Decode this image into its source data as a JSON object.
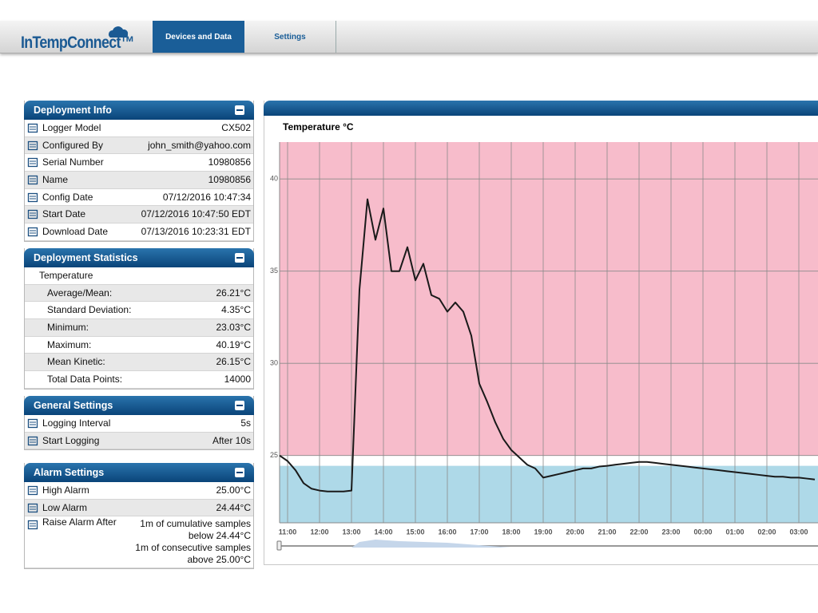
{
  "header": {
    "logo": "InTempConnect™",
    "tabs": [
      "Devices and Data",
      "Settings"
    ]
  },
  "deployment_info": {
    "title": "Deployment Info",
    "rows": [
      {
        "label": "Logger Model",
        "value": "CX502"
      },
      {
        "label": "Configured By",
        "value": "john_smith@yahoo.com"
      },
      {
        "label": "Serial Number",
        "value": "10980856"
      },
      {
        "label": "Name",
        "value": "10980856"
      },
      {
        "label": "Config Date",
        "value": "07/12/2016 10:47:34"
      },
      {
        "label": "Start Date",
        "value": "07/12/2016 10:47:50 EDT"
      },
      {
        "label": "Download Date",
        "value": "07/13/2016 10:23:31 EDT"
      }
    ]
  },
  "deployment_statistics": {
    "title": "Deployment Statistics",
    "group": "Temperature",
    "rows": [
      {
        "label": "Average/Mean:",
        "value": "26.21°C"
      },
      {
        "label": "Standard Deviation:",
        "value": "4.35°C"
      },
      {
        "label": "Minimum:",
        "value": "23.03°C"
      },
      {
        "label": "Maximum:",
        "value": "40.19°C"
      },
      {
        "label": "Mean Kinetic:",
        "value": "26.15°C"
      },
      {
        "label": "Total Data Points:",
        "value": "14000"
      }
    ]
  },
  "general_settings": {
    "title": "General Settings",
    "rows": [
      {
        "label": "Logging Interval",
        "value": "5s"
      },
      {
        "label": "Start Logging",
        "value": "After 10s"
      }
    ]
  },
  "alarm_settings": {
    "title": "Alarm Settings",
    "rows": [
      {
        "label": "High Alarm",
        "value": "25.00°C"
      },
      {
        "label": "Low Alarm",
        "value": "24.44°C"
      },
      {
        "label": "Raise Alarm After",
        "lines": [
          "1m of cumulative samples",
          "below 24.44°C",
          "1m of consecutive samples",
          "above 25.00°C"
        ]
      }
    ]
  },
  "chart_data": {
    "type": "line",
    "title": "Temperature °C",
    "color": "#1a1a1a",
    "categories": [
      null,
      "11:00",
      null,
      null,
      null,
      "12:00",
      null,
      null,
      null,
      "13:00",
      null,
      null,
      null,
      "14:00",
      null,
      null,
      null,
      "15:00",
      null,
      null,
      null,
      "16:00",
      null,
      null,
      null,
      "17:00",
      null,
      null,
      null,
      "18:00",
      null,
      null,
      null,
      "19:00",
      null,
      null,
      null,
      "20:00",
      null,
      null,
      null,
      "21:00",
      null,
      null,
      null,
      "22:00",
      null,
      null,
      null,
      "23:00",
      null,
      null,
      null,
      "00:00",
      null,
      null,
      null,
      "01:00",
      null,
      null,
      null,
      "02:00",
      null,
      null,
      null,
      "03:00",
      null,
      null
    ],
    "values": [
      25.0,
      24.7,
      24.2,
      23.5,
      23.2,
      23.1,
      23.05,
      23.05,
      23.05,
      23.1,
      34.0,
      38.9,
      36.7,
      38.4,
      35.0,
      35.0,
      36.3,
      34.5,
      35.4,
      33.7,
      33.5,
      32.8,
      33.3,
      32.8,
      31.5,
      28.9,
      27.9,
      26.8,
      25.9,
      25.3,
      24.9,
      24.5,
      24.3,
      23.8,
      23.9,
      24.0,
      24.1,
      24.2,
      24.3,
      24.3,
      24.4,
      24.44,
      24.5,
      24.55,
      24.6,
      24.65,
      24.65,
      24.6,
      24.55,
      24.5,
      24.45,
      24.4,
      24.35,
      24.3,
      24.25,
      24.2,
      24.15,
      24.1,
      24.05,
      24.0,
      23.95,
      23.9,
      23.85,
      23.85,
      23.8,
      23.8,
      23.75,
      23.7
    ],
    "ylim": [
      21.35,
      42.0
    ],
    "yticks": [
      25,
      30,
      35,
      40
    ],
    "grid": true,
    "high_alarm": 25,
    "low_alarm": 24.44,
    "high_color": "#f7bccb",
    "low_color": "#aed9e8"
  }
}
